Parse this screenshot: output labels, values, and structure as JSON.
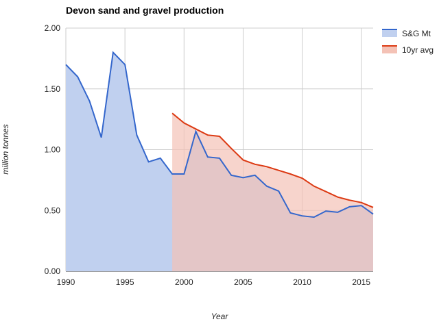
{
  "chart_data": {
    "type": "area",
    "title": "Devon sand and gravel production",
    "xlabel": "Year",
    "ylabel": "million tonnes",
    "xlim": [
      1990,
      2016
    ],
    "ylim": [
      0,
      2
    ],
    "x_ticks": [
      "1990",
      "1995",
      "2000",
      "2005",
      "2010",
      "2015"
    ],
    "y_ticks": [
      "0.00",
      "0.50",
      "1.00",
      "1.50",
      "2.00"
    ],
    "grid": true,
    "legend_position": "right",
    "series": [
      {
        "name": "S&G Mt",
        "color": "#3366cc",
        "fill": "#c0d0ef",
        "x": [
          1990,
          1991,
          1992,
          1993,
          1994,
          1995,
          1996,
          1997,
          1998,
          1999,
          2000,
          2001,
          2002,
          2003,
          2004,
          2005,
          2006,
          2007,
          2008,
          2009,
          2010,
          2011,
          2012,
          2013,
          2014,
          2015,
          2016
        ],
        "values": [
          1.7,
          1.6,
          1.4,
          1.1,
          1.8,
          1.7,
          1.12,
          0.9,
          0.93,
          0.8,
          0.8,
          1.15,
          0.94,
          0.93,
          0.79,
          0.77,
          0.79,
          0.7,
          0.66,
          0.48,
          0.455,
          0.445,
          0.495,
          0.485,
          0.53,
          0.54,
          0.47
        ]
      },
      {
        "name": "10yr avg",
        "color": "#dc3912",
        "fill": "#f4c2b6",
        "x": [
          1999,
          2000,
          2001,
          2002,
          2003,
          2004,
          2005,
          2006,
          2007,
          2008,
          2009,
          2010,
          2011,
          2012,
          2013,
          2014,
          2015,
          2016
        ],
        "values": [
          1.3,
          1.22,
          1.17,
          1.12,
          1.11,
          1.01,
          0.915,
          0.88,
          0.86,
          0.83,
          0.8,
          0.765,
          0.7,
          0.655,
          0.61,
          0.585,
          0.565,
          0.525
        ]
      }
    ]
  }
}
